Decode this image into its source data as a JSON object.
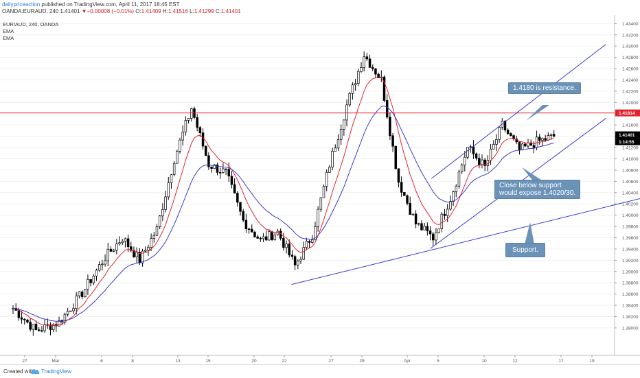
{
  "header": {
    "brand": "dailypriceaction",
    "published": " published on TradingView.com, April 11, 2017 18:45 EST",
    "symbol": "OANDA:EURAUD, 240",
    "last": "1.41401",
    "change": "−0.00008 (−0.01%)",
    "o_label": "O:",
    "o_value": "1.41409",
    "h_label": "H:",
    "h_value": "1.41516",
    "l_label": "L:",
    "l_value": "1.41299",
    "c_label": "C:",
    "c_value": "1.41401"
  },
  "legend": {
    "pair": "EUR/AUD, 240, OANDA",
    "ema1": "EMA",
    "ema2": "EMA"
  },
  "footer": {
    "created": "Created with",
    "tradingview": "TradingView"
  },
  "annotations": {
    "resistance": "1.4180 is resistance.",
    "support_break_line1": "Close below support",
    "support_break_line2": "would expose 1.4020/30.",
    "support": "Support."
  },
  "colors": {
    "up_candle": "#ffffff",
    "down_candle": "#000000",
    "ema_fast": "#e0242f",
    "ema_slow": "#3a3ad0",
    "resistance_line": "#e0242f",
    "trend_lines": "#3a3ad0",
    "callout": "#6b93b8"
  },
  "chart_data": {
    "type": "candlestick",
    "timeframe": "240",
    "x_ticks": [
      "27",
      "Mar",
      "6",
      "8",
      "13",
      "15",
      "20",
      "22",
      "27",
      "29",
      "Apr",
      "5",
      "10",
      "12",
      "17",
      "19"
    ],
    "y_ticks": [
      "1.43400",
      "1.43200",
      "1.43000",
      "1.42800",
      "1.42600",
      "1.42400",
      "1.42200",
      "1.42000",
      "1.41800",
      "1.41600",
      "1.41400",
      "1.41200",
      "1.41000",
      "1.40800",
      "1.40600",
      "1.40400",
      "1.40200",
      "1.40000",
      "1.39800",
      "1.39600",
      "1.39400",
      "1.39200",
      "1.39000",
      "1.38800",
      "1.38600",
      "1.38400",
      "1.38200",
      "1.38000"
    ],
    "ylim": [
      1.3778,
      1.4355
    ],
    "resistance_level": "1.41814",
    "current_price": "1.41401",
    "countdown": "1:14:55",
    "path_keypoints": [
      {
        "bar": 0,
        "price": 1.3835
      },
      {
        "bar": 8,
        "price": 1.3795
      },
      {
        "bar": 16,
        "price": 1.381
      },
      {
        "bar": 24,
        "price": 1.3862
      },
      {
        "bar": 32,
        "price": 1.3925
      },
      {
        "bar": 38,
        "price": 1.396
      },
      {
        "bar": 44,
        "price": 1.392
      },
      {
        "bar": 50,
        "price": 1.3975
      },
      {
        "bar": 56,
        "price": 1.41
      },
      {
        "bar": 62,
        "price": 1.419
      },
      {
        "bar": 68,
        "price": 1.409
      },
      {
        "bar": 74,
        "price": 1.4075
      },
      {
        "bar": 80,
        "price": 1.399
      },
      {
        "bar": 86,
        "price": 1.3955
      },
      {
        "bar": 92,
        "price": 1.397
      },
      {
        "bar": 98,
        "price": 1.391
      },
      {
        "bar": 104,
        "price": 1.3965
      },
      {
        "bar": 110,
        "price": 1.409
      },
      {
        "bar": 116,
        "price": 1.4195
      },
      {
        "bar": 122,
        "price": 1.4285
      },
      {
        "bar": 128,
        "price": 1.424
      },
      {
        "bar": 134,
        "price": 1.406
      },
      {
        "bar": 140,
        "price": 1.3985
      },
      {
        "bar": 146,
        "price": 1.396
      },
      {
        "bar": 152,
        "price": 1.403
      },
      {
        "bar": 158,
        "price": 1.412
      },
      {
        "bar": 164,
        "price": 1.4085
      },
      {
        "bar": 170,
        "price": 1.416
      },
      {
        "bar": 176,
        "price": 1.4115
      },
      {
        "bar": 182,
        "price": 1.413
      },
      {
        "bar": 188,
        "price": 1.414
      }
    ],
    "trend_lines": [
      {
        "name": "support-lower",
        "from": {
          "bar": 96.8,
          "price": 1.3877
        },
        "to": {
          "bar": 227.9,
          "price": 1.4042
        }
      },
      {
        "name": "channel-lower",
        "from": {
          "bar": 145.1,
          "price": 1.3941
        },
        "to": {
          "bar": 206.1,
          "price": 1.4172
        }
      },
      {
        "name": "channel-upper",
        "from": {
          "bar": 145.4,
          "price": 1.4065
        },
        "to": {
          "bar": 206.0,
          "price": 1.4303
        }
      }
    ]
  }
}
